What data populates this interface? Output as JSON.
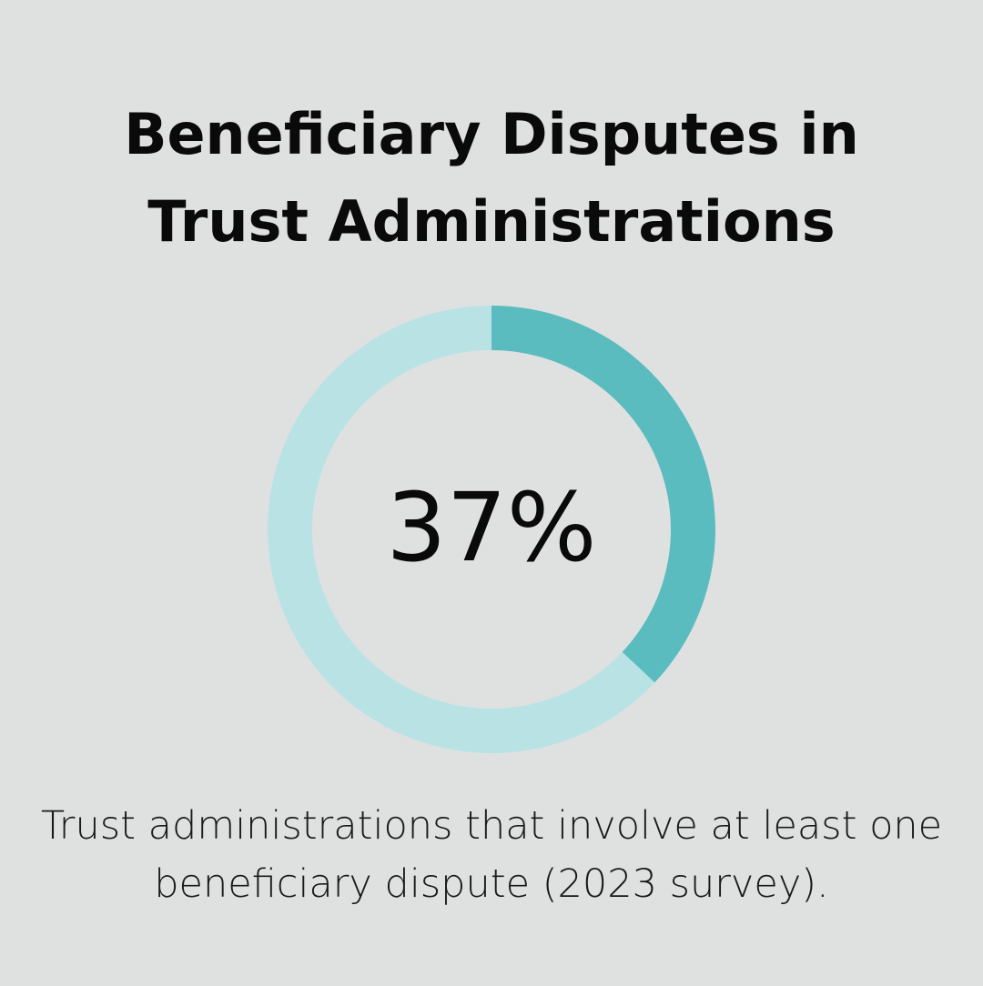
{
  "title_lines": [
    "Beneficiary Disputes in",
    "Trust Administrations"
  ],
  "chart_data": {
    "type": "pie",
    "variant": "donut",
    "slices": [
      {
        "label": "Trust administrations with at least one beneficiary dispute",
        "value": 37,
        "color": "#5bbcc0"
      },
      {
        "label": "",
        "value": 63,
        "color": "#b9e2e5"
      }
    ],
    "center_label": "37%",
    "caption": "Trust administrations that involve at least one beneficiary dispute (2023 survey)."
  },
  "colors": {
    "background": "#dfe1e0",
    "accent": "#5bbcc0",
    "track": "#b9e2e5",
    "text": "#0a0a0a"
  }
}
